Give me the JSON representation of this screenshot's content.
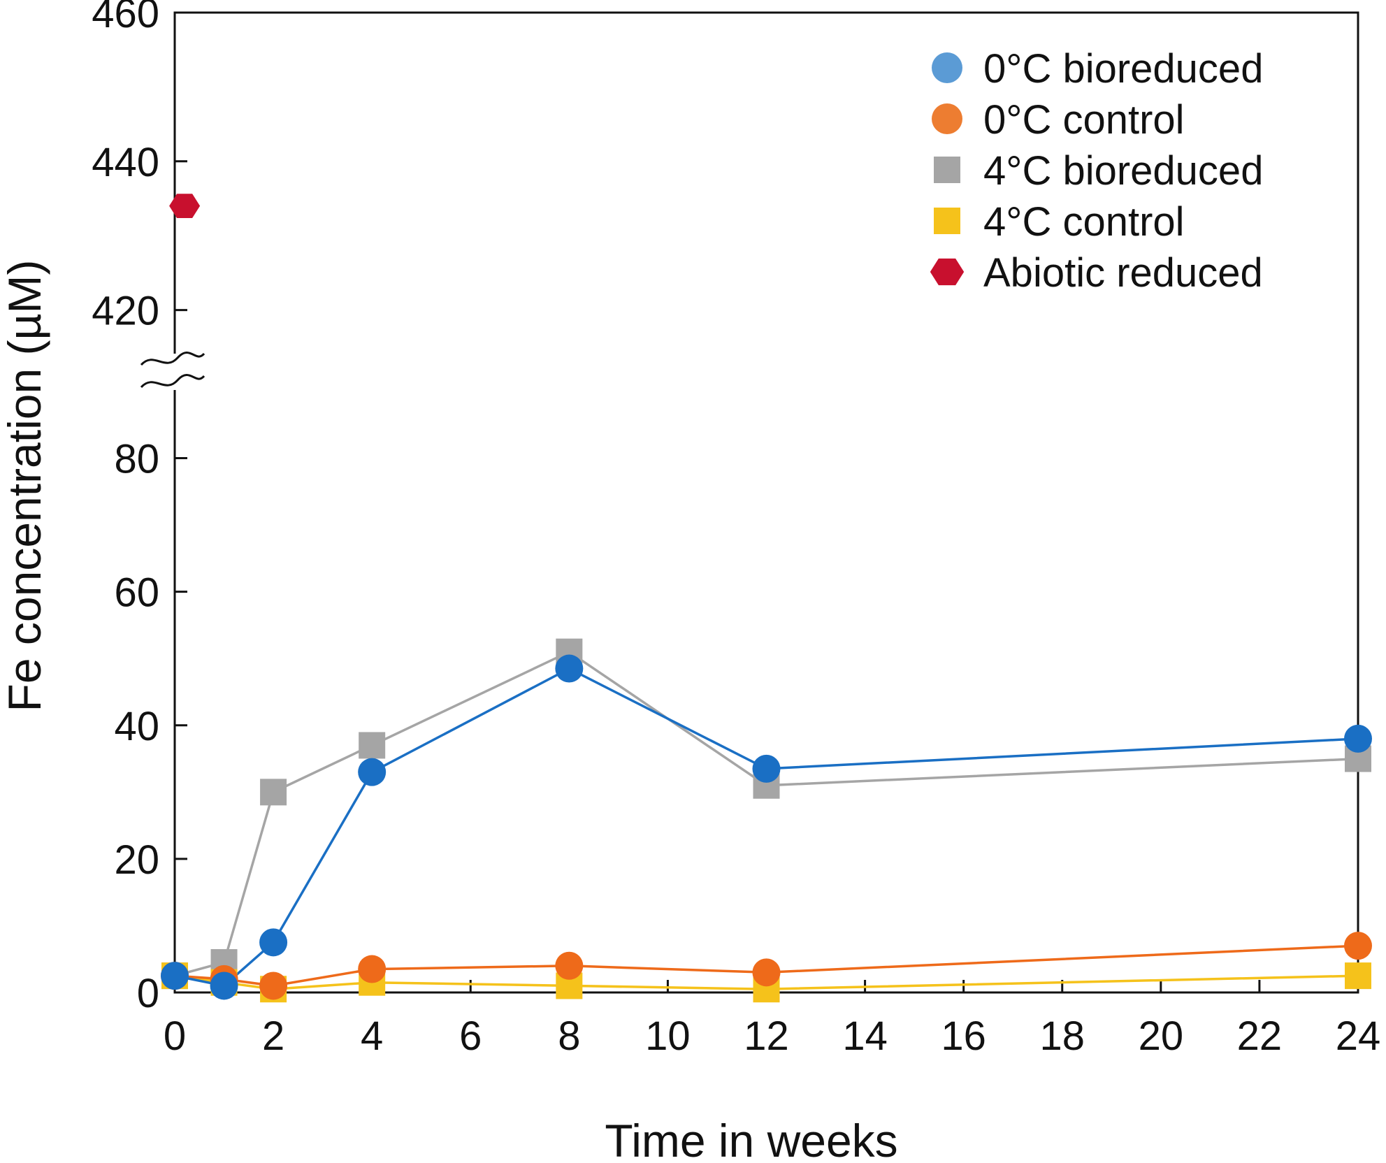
{
  "chart_data": {
    "type": "line",
    "title": "",
    "xlabel": "Time in weeks",
    "ylabel": "Fe concentration (µM)",
    "xlim": [
      0,
      24
    ],
    "x_ticks": [
      0,
      2,
      4,
      6,
      8,
      10,
      12,
      14,
      16,
      18,
      20,
      22,
      24
    ],
    "x_tick_labels": [
      "0",
      "2",
      "4",
      "6",
      "8",
      "10",
      "12",
      "14",
      "16",
      "18",
      "20",
      "22",
      "24"
    ],
    "y_axis_break": {
      "between": [
        90,
        410
      ]
    },
    "ylim_lower": [
      0,
      90
    ],
    "ylim_upper": [
      410,
      460
    ],
    "y_ticks": [
      0,
      20,
      40,
      60,
      80,
      420,
      440,
      460
    ],
    "y_tick_labels": [
      "0",
      "20",
      "40",
      "60",
      "80",
      "420",
      "440",
      "460"
    ],
    "grid": false,
    "legend_position": "top-right",
    "series": [
      {
        "name": "0°C bioreduced",
        "marker": "circle",
        "color": "#1a6fc4",
        "legend_color": "#5b9bd5",
        "x": [
          0,
          1,
          2,
          4,
          8,
          12,
          24
        ],
        "values": [
          2.5,
          1.0,
          7.5,
          33.0,
          48.5,
          33.5,
          38.0
        ]
      },
      {
        "name": "0°C control",
        "marker": "circle",
        "color": "#ee6a1a",
        "legend_color": "#ed7d31",
        "x": [
          0,
          1,
          2,
          4,
          8,
          12,
          24
        ],
        "values": [
          2.5,
          2.0,
          1.0,
          3.5,
          4.0,
          3.0,
          7.0
        ]
      },
      {
        "name": "4°C bioreduced",
        "marker": "square",
        "color": "#a5a5a5",
        "legend_color": "#a5a5a5",
        "x": [
          0,
          1,
          2,
          4,
          8,
          12,
          24
        ],
        "values": [
          2.5,
          4.5,
          30.0,
          37.0,
          51.0,
          31.0,
          35.0
        ]
      },
      {
        "name": "4°C control",
        "marker": "square",
        "color": "#f5c21b",
        "legend_color": "#f5c21b",
        "x": [
          0,
          1,
          2,
          4,
          8,
          12,
          24
        ],
        "values": [
          2.5,
          1.5,
          0.5,
          1.5,
          1.0,
          0.5,
          2.5
        ]
      },
      {
        "name": "Abiotic reduced",
        "marker": "hexagon",
        "color": "#c8102e",
        "legend_color": "#c8102e",
        "x": [
          0.2
        ],
        "values": [
          434.0
        ]
      }
    ]
  }
}
